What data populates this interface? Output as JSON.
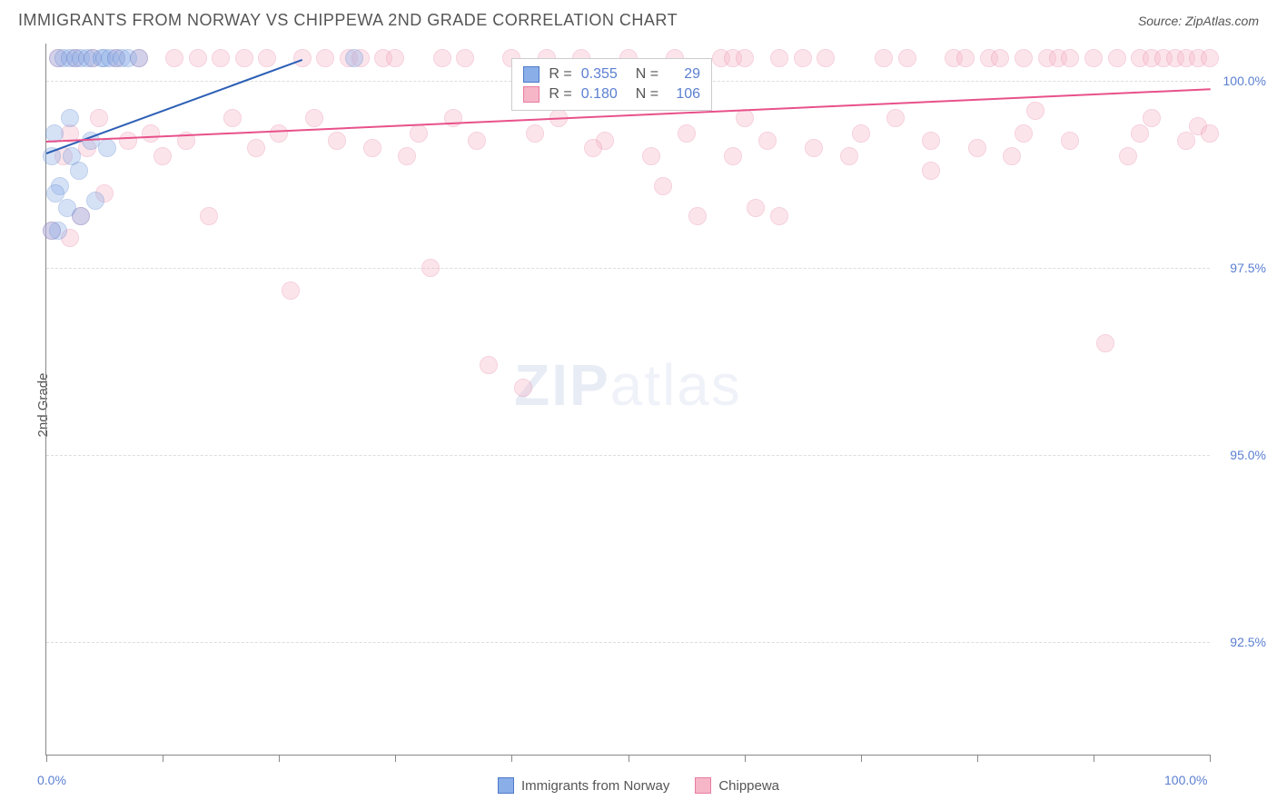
{
  "title": "IMMIGRANTS FROM NORWAY VS CHIPPEWA 2ND GRADE CORRELATION CHART",
  "source": "Source: ZipAtlas.com",
  "watermark_main": "ZIP",
  "watermark_sub": "atlas",
  "ylabel": "2nd Grade",
  "chart": {
    "type": "scatter",
    "background_color": "#ffffff",
    "grid_color": "#dddddd",
    "axis_color": "#888888",
    "label_color": "#5b7fd1",
    "xlim": [
      0,
      100
    ],
    "ylim": [
      91.0,
      100.5
    ],
    "x_ticks": [
      0,
      10,
      20,
      30,
      40,
      50,
      60,
      70,
      80,
      90,
      100
    ],
    "x_tick_labels": {
      "0": "0.0%",
      "100": "100.0%"
    },
    "y_gridlines": [
      92.5,
      95.0,
      97.5,
      100.0
    ],
    "y_tick_labels": {
      "92.5": "92.5%",
      "95.0": "95.0%",
      "97.5": "97.5%",
      "100.0": "100.0%"
    },
    "point_radius": 10,
    "point_opacity": 0.35,
    "series": [
      {
        "name": "Immigrants from Norway",
        "color_fill": "#8aaee8",
        "color_stroke": "#4d7ac9",
        "R": "0.355",
        "N": "29",
        "trend": {
          "x1": 0,
          "y1": 99.05,
          "x2": 22,
          "y2": 100.3,
          "color": "#2d5fb5"
        },
        "points": [
          [
            0.5,
            99.0
          ],
          [
            0.7,
            99.3
          ],
          [
            1.0,
            100.3
          ],
          [
            1.2,
            98.6
          ],
          [
            1.5,
            100.3
          ],
          [
            1.8,
            98.3
          ],
          [
            2.0,
            100.3
          ],
          [
            2.2,
            99.0
          ],
          [
            2.5,
            100.3
          ],
          [
            2.8,
            98.8
          ],
          [
            3.0,
            100.3
          ],
          [
            3.5,
            100.3
          ],
          [
            3.8,
            99.2
          ],
          [
            4.0,
            100.3
          ],
          [
            4.2,
            98.4
          ],
          [
            4.8,
            100.3
          ],
          [
            5.0,
            100.3
          ],
          [
            5.5,
            100.3
          ],
          [
            6.0,
            100.3
          ],
          [
            6.5,
            100.3
          ],
          [
            7.0,
            100.3
          ],
          [
            8.0,
            100.3
          ],
          [
            3.0,
            98.2
          ],
          [
            1.0,
            98.0
          ],
          [
            0.5,
            98.0
          ],
          [
            0.8,
            98.5
          ],
          [
            26.5,
            100.3
          ],
          [
            5.2,
            99.1
          ],
          [
            2.0,
            99.5
          ]
        ]
      },
      {
        "name": "Chippewa",
        "color_fill": "#f6b6c8",
        "color_stroke": "#e87ca0",
        "R": "0.180",
        "N": "106",
        "trend": {
          "x1": 0,
          "y1": 99.2,
          "x2": 100,
          "y2": 99.9,
          "color": "#e8518a"
        },
        "points": [
          [
            0.5,
            98.0
          ],
          [
            1,
            100.3
          ],
          [
            1.5,
            99.0
          ],
          [
            2,
            99.3
          ],
          [
            2.5,
            100.3
          ],
          [
            3,
            98.2
          ],
          [
            3.5,
            99.1
          ],
          [
            4,
            100.3
          ],
          [
            4.5,
            99.5
          ],
          [
            5,
            98.5
          ],
          [
            6,
            100.3
          ],
          [
            7,
            99.2
          ],
          [
            8,
            100.3
          ],
          [
            9,
            99.3
          ],
          [
            10,
            99.0
          ],
          [
            11,
            100.3
          ],
          [
            12,
            99.2
          ],
          [
            13,
            100.3
          ],
          [
            14,
            98.2
          ],
          [
            15,
            100.3
          ],
          [
            16,
            99.5
          ],
          [
            17,
            100.3
          ],
          [
            18,
            99.1
          ],
          [
            19,
            100.3
          ],
          [
            20,
            99.3
          ],
          [
            21,
            97.2
          ],
          [
            22,
            100.3
          ],
          [
            23,
            99.5
          ],
          [
            24,
            100.3
          ],
          [
            25,
            99.2
          ],
          [
            26,
            100.3
          ],
          [
            27,
            100.3
          ],
          [
            28,
            99.1
          ],
          [
            29,
            100.3
          ],
          [
            30,
            100.3
          ],
          [
            31,
            99.0
          ],
          [
            32,
            99.3
          ],
          [
            33,
            97.5
          ],
          [
            34,
            100.3
          ],
          [
            35,
            99.5
          ],
          [
            36,
            100.3
          ],
          [
            37,
            99.2
          ],
          [
            38,
            96.2
          ],
          [
            40,
            100.3
          ],
          [
            41,
            95.9
          ],
          [
            42,
            99.3
          ],
          [
            43,
            100.3
          ],
          [
            44,
            99.5
          ],
          [
            46,
            100.3
          ],
          [
            48,
            99.2
          ],
          [
            50,
            100.3
          ],
          [
            52,
            99.0
          ],
          [
            53,
            98.6
          ],
          [
            54,
            100.3
          ],
          [
            55,
            99.3
          ],
          [
            56,
            98.2
          ],
          [
            58,
            100.3
          ],
          [
            59,
            100.3
          ],
          [
            60,
            99.5
          ],
          [
            60,
            100.3
          ],
          [
            61,
            98.3
          ],
          [
            62,
            99.2
          ],
          [
            63,
            100.3
          ],
          [
            63,
            98.2
          ],
          [
            65,
            100.3
          ],
          [
            66,
            99.1
          ],
          [
            67,
            100.3
          ],
          [
            69,
            99.0
          ],
          [
            70,
            99.3
          ],
          [
            72,
            100.3
          ],
          [
            73,
            99.5
          ],
          [
            74,
            100.3
          ],
          [
            76,
            99.2
          ],
          [
            76,
            98.8
          ],
          [
            78,
            100.3
          ],
          [
            79,
            100.3
          ],
          [
            80,
            99.1
          ],
          [
            81,
            100.3
          ],
          [
            82,
            100.3
          ],
          [
            83,
            99.0
          ],
          [
            84,
            100.3
          ],
          [
            84,
            99.3
          ],
          [
            85,
            99.6
          ],
          [
            86,
            100.3
          ],
          [
            87,
            100.3
          ],
          [
            88,
            99.2
          ],
          [
            88,
            100.3
          ],
          [
            90,
            100.3
          ],
          [
            91,
            96.5
          ],
          [
            92,
            100.3
          ],
          [
            93,
            99.0
          ],
          [
            94,
            99.3
          ],
          [
            94,
            100.3
          ],
          [
            95,
            99.5
          ],
          [
            95,
            100.3
          ],
          [
            96,
            100.3
          ],
          [
            97,
            100.3
          ],
          [
            98,
            99.2
          ],
          [
            98,
            100.3
          ],
          [
            99,
            100.3
          ],
          [
            99,
            99.4
          ],
          [
            100,
            100.3
          ],
          [
            100,
            99.3
          ],
          [
            59,
            99.0
          ],
          [
            47,
            99.1
          ],
          [
            2,
            97.9
          ]
        ]
      }
    ]
  },
  "stats_box": {
    "top_pct": 2,
    "left_pct": 40
  },
  "bottom_legend": [
    {
      "label": "Immigrants from Norway",
      "fill": "#8aaee8",
      "stroke": "#4d7ac9"
    },
    {
      "label": "Chippewa",
      "fill": "#f6b6c8",
      "stroke": "#e87ca0"
    }
  ]
}
